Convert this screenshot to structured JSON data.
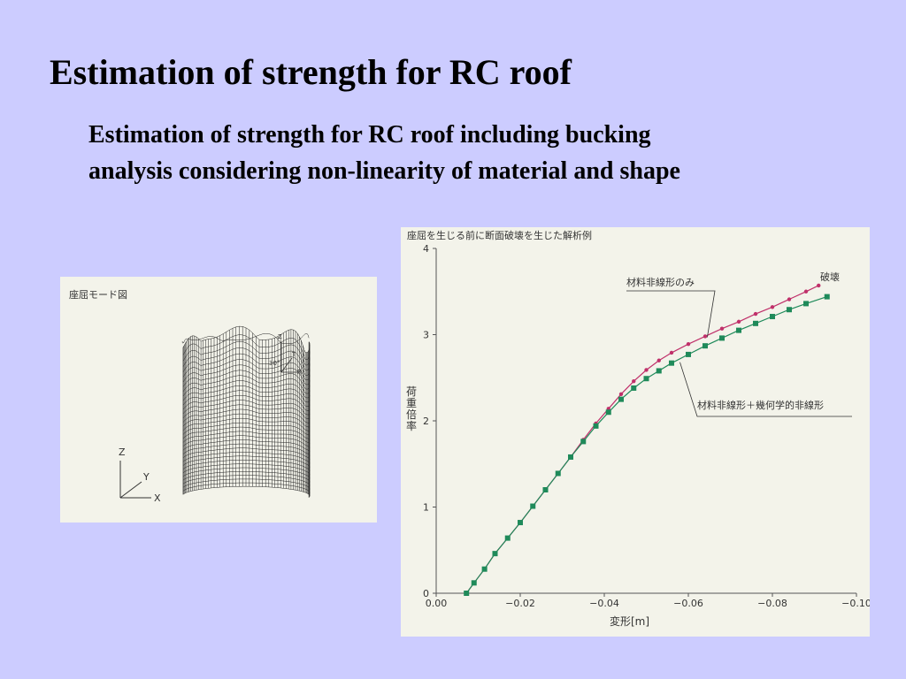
{
  "slide": {
    "title": "Estimation of strength for RC roof",
    "subtitle": "Estimation of strength for RC roof including bucking analysis considering non-linearity of material and shape"
  },
  "mesh_figure": {
    "label": "座屈モード図",
    "axes_labels": {
      "z": "Z",
      "y": "Y",
      "x": "X"
    },
    "inset_labels": {
      "z": "Z",
      "t": "T",
      "r": "R",
      "angle": "30°"
    }
  },
  "chart_data": {
    "type": "line",
    "title": "座屈を生じる前に断面破壊を生じた解析例",
    "xlabel": "変形[m]",
    "ylabel": "荷重倍率",
    "xlim": [
      0.0,
      -0.1
    ],
    "ylim": [
      0,
      4
    ],
    "xticks": [
      "0.00",
      "−0.02",
      "−0.04",
      "−0.06",
      "−0.08",
      "−0.10"
    ],
    "yticks": [
      "0",
      "1",
      "2",
      "3",
      "4"
    ],
    "x_tick_values": [
      0.0,
      -0.02,
      -0.04,
      -0.06,
      -0.08,
      -0.1
    ],
    "y_tick_values": [
      0,
      1,
      2,
      3,
      4
    ],
    "annotations": {
      "failure": "破壊"
    },
    "series": [
      {
        "name": "材料非線形のみ",
        "color": "#c0306a",
        "marker": "circle",
        "x": [
          -0.0072,
          -0.009,
          -0.0115,
          -0.014,
          -0.017,
          -0.02,
          -0.023,
          -0.026,
          -0.029,
          -0.032,
          -0.035,
          -0.038,
          -0.041,
          -0.044,
          -0.047,
          -0.05,
          -0.053,
          -0.056,
          -0.06,
          -0.064,
          -0.068,
          -0.072,
          -0.076,
          -0.08,
          -0.084,
          -0.088,
          -0.091
        ],
        "y": [
          0.0,
          0.12,
          0.28,
          0.46,
          0.64,
          0.82,
          1.01,
          1.2,
          1.39,
          1.58,
          1.78,
          1.97,
          2.14,
          2.31,
          2.46,
          2.59,
          2.7,
          2.79,
          2.89,
          2.98,
          3.07,
          3.15,
          3.24,
          3.32,
          3.41,
          3.5,
          3.57
        ]
      },
      {
        "name": "材料非線形＋幾何学的非線形",
        "color": "#1f8a5a",
        "marker": "square",
        "x": [
          -0.0072,
          -0.009,
          -0.0115,
          -0.014,
          -0.017,
          -0.02,
          -0.023,
          -0.026,
          -0.029,
          -0.032,
          -0.035,
          -0.038,
          -0.041,
          -0.044,
          -0.047,
          -0.05,
          -0.053,
          -0.056,
          -0.06,
          -0.064,
          -0.068,
          -0.072,
          -0.076,
          -0.08,
          -0.084,
          -0.088,
          -0.093
        ],
        "y": [
          0.0,
          0.12,
          0.28,
          0.46,
          0.64,
          0.82,
          1.01,
          1.2,
          1.39,
          1.58,
          1.76,
          1.94,
          2.1,
          2.25,
          2.38,
          2.49,
          2.58,
          2.67,
          2.77,
          2.87,
          2.96,
          3.05,
          3.13,
          3.21,
          3.29,
          3.36,
          3.44
        ]
      }
    ]
  }
}
